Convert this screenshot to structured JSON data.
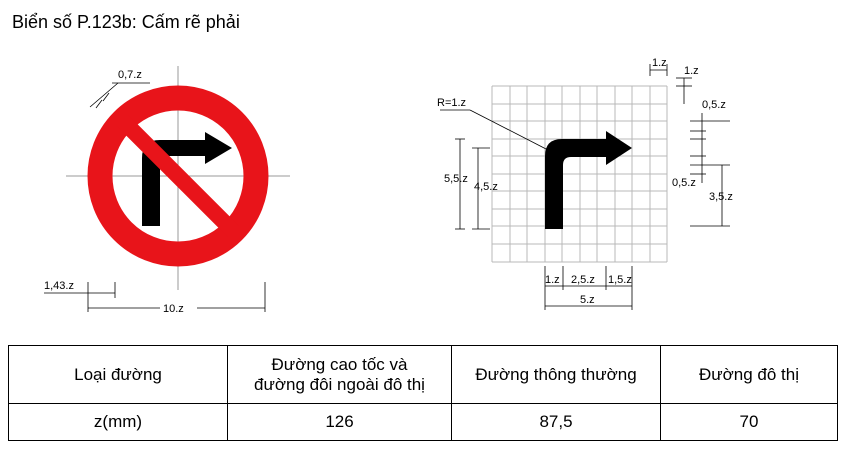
{
  "title": "Biển số P.123b: Cấm rẽ phải",
  "colors": {
    "sign_red": "#e8141a",
    "symbol": "#000000",
    "grid": "#b8b8b8"
  },
  "sign_dimensions": {
    "ring_width": "0,7.z",
    "bar_offset": "1,43.z",
    "diameter": "10.z"
  },
  "arrow_dimensions": {
    "radius": "R=1.z",
    "cell_top": "1.z",
    "cell_right": "1.z",
    "head_offset_top": "0,5.z",
    "head_offset_bottom": "0,5.z",
    "head_height": "3,5.z",
    "total_height": "5,5.z",
    "stem_height": "4,5.z",
    "stem_width": "1.z",
    "shaft_length": "2,5.z",
    "head_length": "1,5.z",
    "total_width": "5.z"
  },
  "table": {
    "header": [
      "Loại đường",
      "Đường cao tốc và\nđường đôi ngoài đô thị",
      "Đường thông thường",
      "Đường đô thị"
    ],
    "row": [
      "z(mm)",
      "126",
      "87,5",
      "70"
    ]
  }
}
